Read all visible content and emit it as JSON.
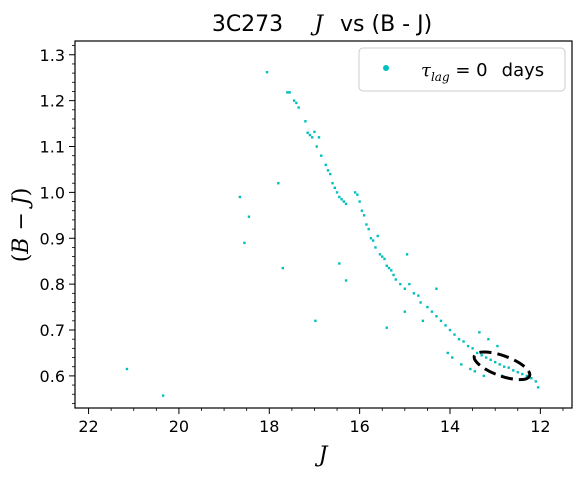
{
  "chart_data": {
    "type": "scatter",
    "title": {
      "object": "3C273",
      "variable": "J",
      "suffix": "vs (B - J)"
    },
    "xlabel": "J",
    "ylabel": {
      "open": "(",
      "b": "B",
      "minus": " − ",
      "j": "J",
      "close": ")"
    },
    "xlim": [
      22.3,
      11.3
    ],
    "ylim": [
      0.53,
      1.33
    ],
    "x_inverted": true,
    "x_ticks": [
      22,
      20,
      18,
      16,
      14,
      12
    ],
    "x_tick_labels": [
      "22",
      "20",
      "18",
      "16",
      "14",
      "12"
    ],
    "y_ticks": [
      0.6,
      0.7,
      0.8,
      0.9,
      1.0,
      1.1,
      1.2,
      1.3
    ],
    "y_tick_labels": [
      "0.6",
      "0.7",
      "0.8",
      "0.9",
      "1.0",
      "1.1",
      "1.2",
      "1.3"
    ],
    "grid": false,
    "legend": {
      "position": "top-right",
      "tau": "τ",
      "sub": "lag",
      "eq": " = 0",
      "unit": "days"
    },
    "colors": {
      "series": "#00bfbf",
      "ellipse": "#000000",
      "axes": "#000000"
    },
    "series": [
      {
        "name": "τlag = 0 days",
        "points": [
          [
            21.15,
            0.615
          ],
          [
            20.35,
            0.557
          ],
          [
            18.65,
            0.99
          ],
          [
            18.55,
            0.89
          ],
          [
            18.45,
            0.947
          ],
          [
            18.05,
            1.262
          ],
          [
            17.8,
            1.02
          ],
          [
            17.7,
            0.835
          ],
          [
            17.6,
            1.218
          ],
          [
            17.55,
            1.218
          ],
          [
            17.45,
            1.2
          ],
          [
            17.4,
            1.195
          ],
          [
            17.35,
            1.185
          ],
          [
            17.2,
            1.155
          ],
          [
            17.15,
            1.13
          ],
          [
            17.1,
            1.125
          ],
          [
            17.05,
            1.12
          ],
          [
            17.0,
            1.132
          ],
          [
            16.95,
            1.1
          ],
          [
            16.9,
            1.12
          ],
          [
            16.85,
            1.08
          ],
          [
            16.98,
            0.72
          ],
          [
            16.75,
            1.06
          ],
          [
            16.7,
            1.048
          ],
          [
            16.65,
            1.04
          ],
          [
            16.6,
            1.02
          ],
          [
            16.55,
            1.01
          ],
          [
            16.5,
            1.0
          ],
          [
            16.45,
            0.99
          ],
          [
            16.4,
            0.985
          ],
          [
            16.35,
            0.98
          ],
          [
            16.3,
            0.975
          ],
          [
            16.45,
            0.845
          ],
          [
            16.3,
            0.808
          ],
          [
            16.1,
            1.0
          ],
          [
            16.05,
            0.995
          ],
          [
            16.0,
            0.98
          ],
          [
            15.95,
            0.96
          ],
          [
            15.9,
            0.95
          ],
          [
            15.85,
            0.93
          ],
          [
            15.8,
            0.92
          ],
          [
            15.75,
            0.9
          ],
          [
            15.7,
            0.895
          ],
          [
            15.65,
            0.88
          ],
          [
            15.6,
            0.905
          ],
          [
            15.55,
            0.865
          ],
          [
            15.5,
            0.86
          ],
          [
            15.45,
            0.855
          ],
          [
            15.4,
            0.84
          ],
          [
            15.35,
            0.835
          ],
          [
            15.3,
            0.83
          ],
          [
            15.25,
            0.82
          ],
          [
            15.2,
            0.81
          ],
          [
            15.1,
            0.8
          ],
          [
            15.0,
            0.79
          ],
          [
            14.95,
            0.865
          ],
          [
            14.9,
            0.8
          ],
          [
            14.8,
            0.78
          ],
          [
            14.7,
            0.775
          ],
          [
            14.65,
            0.76
          ],
          [
            14.5,
            0.75
          ],
          [
            14.4,
            0.74
          ],
          [
            14.3,
            0.73
          ],
          [
            14.2,
            0.72
          ],
          [
            14.1,
            0.71
          ],
          [
            15.4,
            0.705
          ],
          [
            15.0,
            0.74
          ],
          [
            14.6,
            0.72
          ],
          [
            14.3,
            0.79
          ],
          [
            14.0,
            0.7
          ],
          [
            13.9,
            0.69
          ],
          [
            13.8,
            0.68
          ],
          [
            13.7,
            0.675
          ],
          [
            13.6,
            0.665
          ],
          [
            13.5,
            0.66
          ],
          [
            13.4,
            0.65
          ],
          [
            13.3,
            0.645
          ],
          [
            13.2,
            0.64
          ],
          [
            13.1,
            0.635
          ],
          [
            13.0,
            0.63
          ],
          [
            12.9,
            0.625
          ],
          [
            12.8,
            0.62
          ],
          [
            12.7,
            0.618
          ],
          [
            12.6,
            0.612
          ],
          [
            12.5,
            0.608
          ],
          [
            12.4,
            0.604
          ],
          [
            12.3,
            0.6
          ],
          [
            12.2,
            0.595
          ],
          [
            12.1,
            0.588
          ],
          [
            12.05,
            0.575
          ],
          [
            13.35,
            0.695
          ],
          [
            13.15,
            0.68
          ],
          [
            12.95,
            0.665
          ],
          [
            13.25,
            0.6
          ],
          [
            12.85,
            0.6
          ],
          [
            14.05,
            0.65
          ],
          [
            13.95,
            0.64
          ],
          [
            13.75,
            0.625
          ],
          [
            13.55,
            0.615
          ],
          [
            13.45,
            0.61
          ]
        ]
      }
    ],
    "ellipse": {
      "cx": 12.85,
      "cy": 0.622,
      "rx": 0.65,
      "ry": 0.022,
      "angle_deg": 20
    }
  }
}
